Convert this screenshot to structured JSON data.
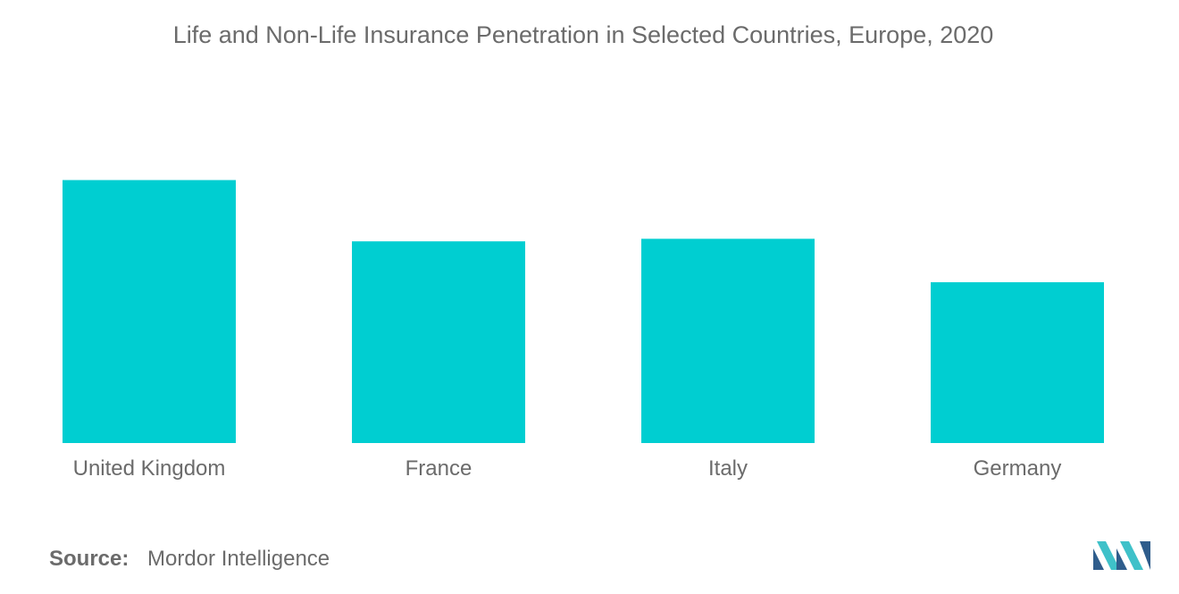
{
  "title": "Life and Non-Life Insurance Penetration in Selected Countries, Europe, 2020",
  "source": {
    "label": "Source:",
    "text": "Mordor Intelligence"
  },
  "colors": {
    "bar": "#00CED1",
    "text": "#6b6b6b",
    "logo_dark": "#2f5d8c",
    "logo_light": "#3fc1c9"
  },
  "chart_data": {
    "type": "bar",
    "title": "Life and Non-Life Insurance Penetration in Selected Countries, Europe, 2020",
    "xlabel": "",
    "ylabel": "",
    "categories": [
      "United Kingdom",
      "France",
      "Italy",
      "Germany"
    ],
    "values": [
      10.3,
      7.9,
      8.0,
      6.3
    ],
    "ylim": [
      0,
      12
    ],
    "grid": false,
    "legend": "none"
  }
}
